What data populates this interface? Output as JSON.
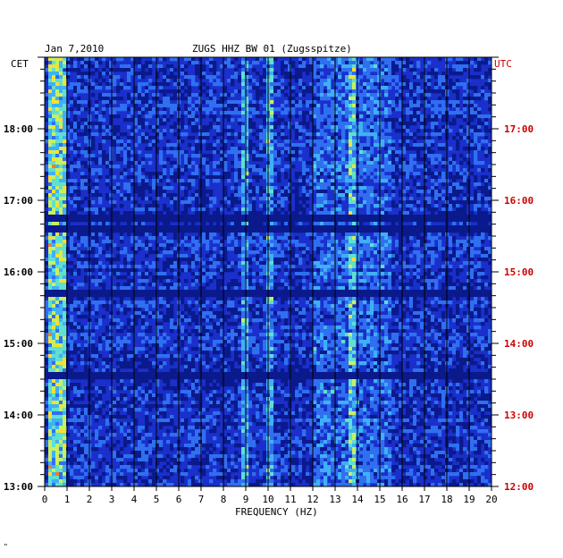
{
  "header": {
    "date": "Jan 7,2010",
    "station": "ZUGS HHZ BW 01 (Zugsspitze)",
    "left_zone": "CET",
    "right_zone": "UTC"
  },
  "footer": {
    "mark": "\""
  },
  "colors": {
    "utc_label": "#cc0000",
    "local_label": "#000000",
    "background_blue": "#1a2fcc",
    "gridline": "#000000"
  },
  "chart_data": {
    "type": "heatmap",
    "title": "ZUGS HHZ BW 01 (Zugsspitze)",
    "xlabel": "FREQUENCY (HZ)",
    "xlim": [
      0,
      20
    ],
    "x_ticks": [
      "0",
      "1",
      "2",
      "3",
      "4",
      "5",
      "6",
      "7",
      "8",
      "9",
      "10",
      "11",
      "12",
      "13",
      "14",
      "15",
      "16",
      "17",
      "18",
      "19",
      "20"
    ],
    "y_ticks_local": [
      "13:00",
      "14:00",
      "15:00",
      "16:00",
      "17:00",
      "18:00"
    ],
    "y_ticks_utc": [
      "12:00",
      "13:00",
      "14:00",
      "15:00",
      "16:00",
      "17:00"
    ],
    "time_range_local_hours": [
      13,
      19
    ],
    "colormap": [
      "#0a1a8c",
      "#1a2fcc",
      "#2f6ff0",
      "#3fb0f5",
      "#5fe0d0",
      "#c8f060",
      "#f8e030",
      "#f08020"
    ],
    "features": {
      "low_freq_energy_hz": [
        0.1,
        0.9
      ],
      "persistent_lines_hz": [
        9.0,
        10.1,
        13.8
      ],
      "broad_activity_hz": [
        12.0,
        15.5
      ],
      "dark_gap_hours_local": [
        14.55,
        15.7,
        16.6,
        16.75
      ]
    }
  }
}
